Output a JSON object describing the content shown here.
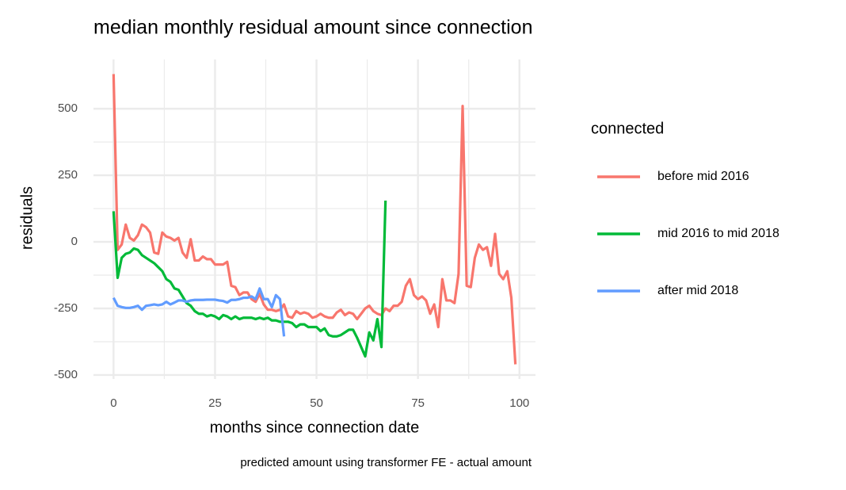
{
  "chart_data": {
    "type": "line",
    "title": "median monthly residual amount since connection",
    "x_label": "months since connection date",
    "y_label": "residuals",
    "caption": "predicted amount using transformer FE - actual amount",
    "legend_title": "connected",
    "legend_position": "right",
    "grid": true,
    "minor_grid": true,
    "xlim": [
      -4.95,
      103.95
    ],
    "ylim": [
      -515,
      685
    ],
    "xticks": [
      0,
      25,
      50,
      75,
      100
    ],
    "yticks": [
      -500,
      -250,
      0,
      250,
      500
    ],
    "x": [
      0,
      1,
      2,
      3,
      4,
      5,
      6,
      7,
      8,
      9,
      10,
      11,
      12,
      13,
      14,
      15,
      16,
      17,
      18,
      19,
      20,
      21,
      22,
      23,
      24,
      25,
      26,
      27,
      28,
      29,
      30,
      31,
      32,
      33,
      34,
      35,
      36,
      37,
      38,
      39,
      40,
      41,
      42,
      43,
      44,
      45,
      46,
      47,
      48,
      49,
      50,
      51,
      52,
      53,
      54,
      55,
      56,
      57,
      58,
      59,
      60,
      61,
      62,
      63,
      64,
      65,
      66,
      67,
      68,
      69,
      70,
      71,
      72,
      73,
      74,
      75,
      76,
      77,
      78,
      79,
      80,
      81,
      82,
      83,
      84,
      85,
      86,
      87,
      88,
      89,
      90,
      91,
      92,
      93,
      94,
      95,
      96,
      97,
      98,
      99
    ],
    "series": [
      {
        "name": "before mid 2016",
        "color": "#F8766D",
        "values": [
          630,
          -30,
          -10,
          65,
          15,
          5,
          25,
          65,
          55,
          35,
          -40,
          -45,
          35,
          20,
          15,
          5,
          15,
          -40,
          -60,
          10,
          -70,
          -70,
          -55,
          -65,
          -65,
          -85,
          -85,
          -85,
          -75,
          -165,
          -170,
          -200,
          -190,
          -190,
          -215,
          -225,
          -195,
          -235,
          -255,
          -255,
          -260,
          -255,
          -235,
          -280,
          -285,
          -260,
          -270,
          -265,
          -270,
          -285,
          -280,
          -270,
          -280,
          -285,
          -285,
          -265,
          -255,
          -275,
          -265,
          -270,
          -290,
          -270,
          -250,
          -240,
          -260,
          -270,
          -275,
          -250,
          -260,
          -240,
          -240,
          -225,
          -165,
          -140,
          -200,
          -215,
          -205,
          -220,
          -270,
          -235,
          -320,
          -140,
          -220,
          -220,
          -230,
          -120,
          510,
          -165,
          -170,
          -60,
          -10,
          -30,
          -20,
          -90,
          30,
          -120,
          -140,
          -110,
          -210,
          -460
        ]
      },
      {
        "name": "mid 2016 to mid 2018",
        "color": "#00BA38",
        "values": [
          115,
          -135,
          -60,
          -45,
          -40,
          -25,
          -30,
          -50,
          -60,
          -70,
          -80,
          -95,
          -110,
          -140,
          -150,
          -175,
          -180,
          -205,
          -230,
          -240,
          -260,
          -270,
          -270,
          -280,
          -275,
          -280,
          -290,
          -275,
          -280,
          -290,
          -280,
          -290,
          -285,
          -285,
          -285,
          -290,
          -285,
          -290,
          -285,
          -295,
          -295,
          -300,
          -300,
          -300,
          -305,
          -320,
          -310,
          -310,
          -320,
          -320,
          -320,
          -335,
          -325,
          -350,
          -355,
          -355,
          -350,
          -340,
          -330,
          -330,
          -360,
          -395,
          -430,
          -340,
          -370,
          -290,
          -395,
          155,
          null,
          null,
          null,
          null,
          null,
          null,
          null,
          null,
          null,
          null,
          null,
          null,
          null,
          null,
          null,
          null,
          null,
          null,
          null,
          null,
          null,
          null,
          null,
          null,
          null,
          null,
          null,
          null,
          null,
          null,
          null,
          null
        ]
      },
      {
        "name": "after mid 2018",
        "color": "#619CFF",
        "values": [
          -210,
          -240,
          -245,
          -248,
          -248,
          -245,
          -240,
          -255,
          -240,
          -238,
          -235,
          -238,
          -235,
          -225,
          -235,
          -228,
          -220,
          -220,
          -225,
          -220,
          -218,
          -218,
          -218,
          -217,
          -217,
          -217,
          -220,
          -222,
          -228,
          -218,
          -218,
          -215,
          -210,
          -210,
          -205,
          -215,
          -175,
          -215,
          -215,
          -245,
          -200,
          -215,
          -355,
          null,
          null,
          null,
          null,
          null,
          null,
          null,
          null,
          null,
          null,
          null,
          null,
          null,
          null,
          null,
          null,
          null,
          null,
          null,
          null,
          null,
          null,
          null,
          null,
          null,
          null,
          null,
          null,
          null,
          null,
          null,
          null,
          null,
          null,
          null,
          null,
          null,
          null,
          null,
          null,
          null,
          null,
          null,
          null,
          null,
          null,
          null,
          null,
          null,
          null,
          null,
          null,
          null,
          null,
          null,
          null,
          null
        ]
      }
    ]
  }
}
